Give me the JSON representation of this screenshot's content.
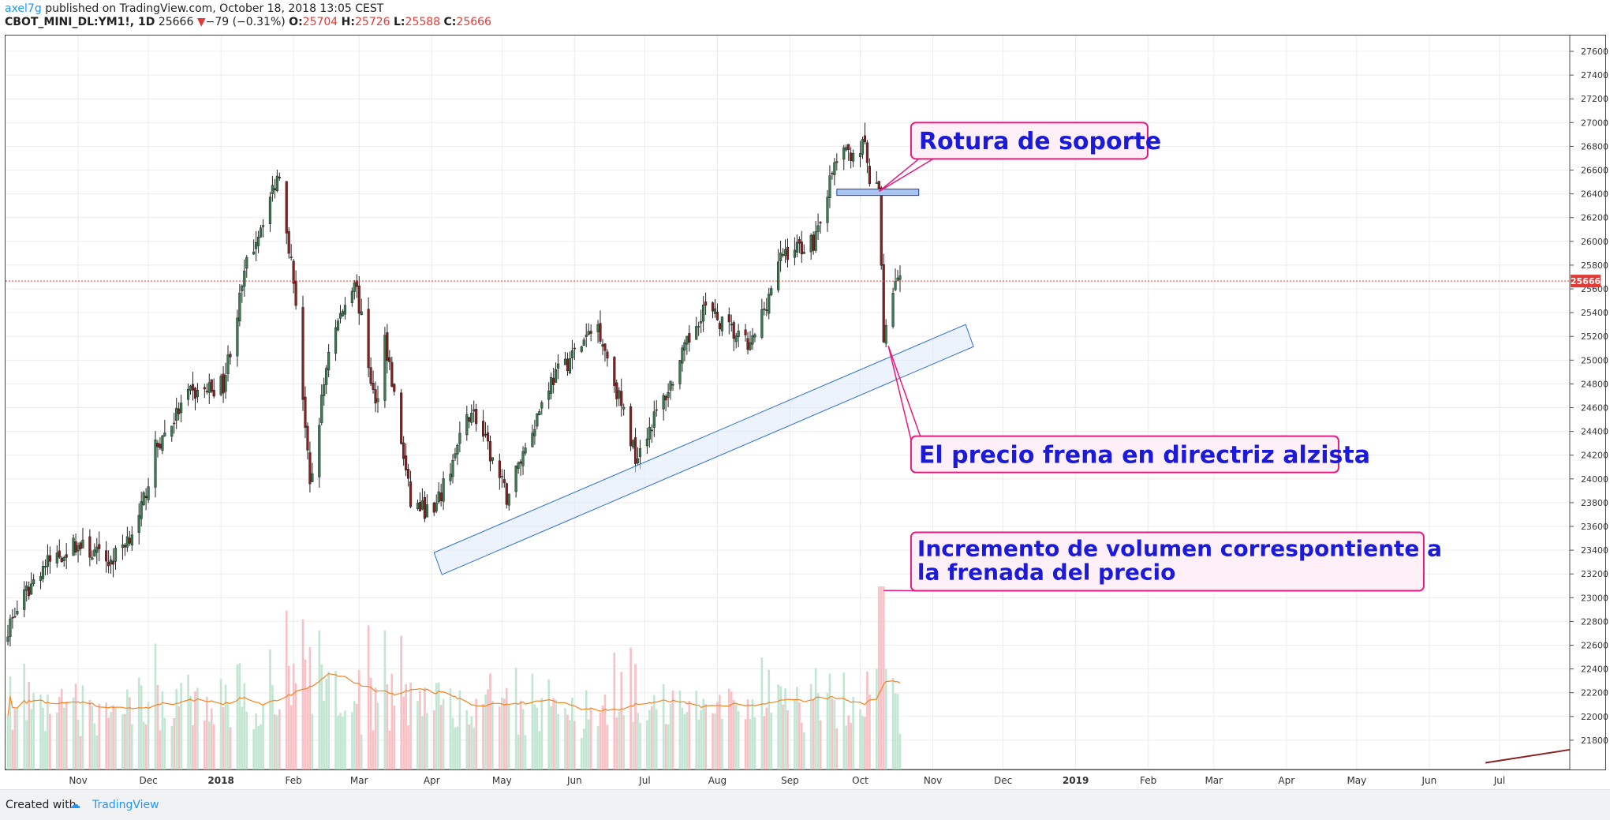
{
  "header": {
    "author": "axel7g",
    "published": "published on TradingView.com, October 18, 2018 13:05 CEST",
    "symbol": "CBOT_MINI_DL:YM1!, 1D",
    "last": "25666",
    "change_arrow": "▼",
    "change": "−79 (−0.31%)",
    "o_label": "O:",
    "o_val": "25704",
    "h_label": "H:",
    "h_val": "25726",
    "l_label": "L:",
    "l_val": "25588",
    "c_label": "C:",
    "c_val": "25666"
  },
  "footer": {
    "created": "Created with",
    "logo_icon": "tradingview-logo-icon",
    "brand": "TradingView"
  },
  "colors": {
    "up": "#387d4f",
    "down": "#8b1f1f",
    "vol_up": "#c3e6d3",
    "vol_down": "#f7c1c6",
    "ma": "#f58220",
    "channel": "#2d6fd6",
    "channel_fill": "#dce9f9",
    "annotation_border": "#e8197f",
    "annotation_text": "#1a1ad8",
    "annotation_fill": "#fff0f8",
    "last_price": "#e53935",
    "grid": "#ececec"
  },
  "chart_data": {
    "type": "candlestick",
    "symbol": "CBOT_MINI_DL:YM1!",
    "interval": "1D",
    "x_range": [
      "2017-10-01",
      "2019-07-31"
    ],
    "ylim": [
      21600,
      27700
    ],
    "y_ticks": [
      21800,
      22000,
      22200,
      22400,
      22600,
      22800,
      23000,
      23200,
      23400,
      23600,
      23800,
      24000,
      24200,
      24400,
      24600,
      24800,
      25000,
      25200,
      25400,
      25600,
      25800,
      26000,
      26200,
      26400,
      26600,
      26800,
      27000,
      27200,
      27400,
      27600
    ],
    "x_ticks": [
      {
        "label": "Nov",
        "date": "2017-11-01",
        "bold": false
      },
      {
        "label": "Dec",
        "date": "2017-12-01",
        "bold": false
      },
      {
        "label": "2018",
        "date": "2018-01-01",
        "bold": true
      },
      {
        "label": "Feb",
        "date": "2018-02-01",
        "bold": false
      },
      {
        "label": "Mar",
        "date": "2018-03-01",
        "bold": false
      },
      {
        "label": "Apr",
        "date": "2018-04-01",
        "bold": false
      },
      {
        "label": "May",
        "date": "2018-05-01",
        "bold": false
      },
      {
        "label": "Jun",
        "date": "2018-06-01",
        "bold": false
      },
      {
        "label": "Jul",
        "date": "2018-07-01",
        "bold": false
      },
      {
        "label": "Aug",
        "date": "2018-08-01",
        "bold": false
      },
      {
        "label": "Sep",
        "date": "2018-09-01",
        "bold": false
      },
      {
        "label": "Oct",
        "date": "2018-10-01",
        "bold": false
      },
      {
        "label": "Nov",
        "date": "2018-11-01",
        "bold": false
      },
      {
        "label": "Dec",
        "date": "2018-12-01",
        "bold": false
      },
      {
        "label": "2019",
        "date": "2019-01-01",
        "bold": true
      },
      {
        "label": "Feb",
        "date": "2019-02-01",
        "bold": false
      },
      {
        "label": "Mar",
        "date": "2019-03-01",
        "bold": false
      },
      {
        "label": "Apr",
        "date": "2019-04-01",
        "bold": false
      },
      {
        "label": "May",
        "date": "2019-05-01",
        "bold": false
      },
      {
        "label": "Jun",
        "date": "2019-06-01",
        "bold": false
      },
      {
        "label": "Jul",
        "date": "2019-07-01",
        "bold": false
      }
    ],
    "price_path": [
      [
        "2017-10-02",
        22750
      ],
      [
        "2017-10-16",
        23250
      ],
      [
        "2017-10-31",
        23450
      ],
      [
        "2017-11-15",
        23300
      ],
      [
        "2017-11-27",
        23650
      ],
      [
        "2017-12-04",
        24250
      ],
      [
        "2017-12-18",
        24700
      ],
      [
        "2018-01-02",
        24800
      ],
      [
        "2018-01-12",
        25800
      ],
      [
        "2018-01-26",
        26600
      ],
      [
        "2018-02-02",
        25500
      ],
      [
        "2018-02-08",
        23900
      ],
      [
        "2018-02-16",
        25100
      ],
      [
        "2018-02-27",
        25700
      ],
      [
        "2018-03-08",
        24600
      ],
      [
        "2018-03-12",
        25200
      ],
      [
        "2018-03-23",
        23800
      ],
      [
        "2018-04-02",
        23700
      ],
      [
        "2018-04-18",
        24600
      ],
      [
        "2018-05-03",
        23850
      ],
      [
        "2018-05-21",
        24800
      ],
      [
        "2018-06-11",
        25300
      ],
      [
        "2018-06-27",
        24200
      ],
      [
        "2018-07-11",
        24750
      ],
      [
        "2018-07-26",
        25450
      ],
      [
        "2018-08-15",
        25100
      ],
      [
        "2018-08-29",
        25900
      ],
      [
        "2018-09-11",
        26000
      ],
      [
        "2018-09-21",
        26700
      ],
      [
        "2018-10-03",
        26800
      ],
      [
        "2018-10-05",
        26500
      ],
      [
        "2018-10-09",
        26400
      ],
      [
        "2018-10-11",
        25200
      ],
      [
        "2018-10-16",
        25700
      ],
      [
        "2018-10-18",
        25666
      ]
    ],
    "last_price": 25666,
    "last_price_label": "25666",
    "volume_spike_date": "2018-10-10",
    "channel": {
      "start": [
        "2018-04-02",
        23380
      ],
      "end": [
        "2018-11-15",
        25300
      ],
      "height": 220
    },
    "support_box": {
      "from": "2018-09-21",
      "to": "2018-10-26",
      "low": 26370,
      "high": 26420
    },
    "extension_line": {
      "start": [
        "2019-06-25",
        21610
      ],
      "end": [
        "2019-07-31",
        21720
      ]
    },
    "annotations": [
      {
        "text": "Rotura de soporte",
        "box_anchor": [
          "2018-10-20",
          27000
        ],
        "target": [
          "2018-10-09",
          26420
        ]
      },
      {
        "text": "El precio frena en directriz alzista",
        "box_anchor": [
          "2018-10-20",
          24360
        ],
        "target": [
          "2018-10-13",
          25120
        ]
      },
      {
        "text": "Incremento de volumen correspontiente a la frenada del precio",
        "box_anchor": [
          "2018-10-20",
          23550
        ],
        "target": [
          "2018-10-11",
          23060
        ]
      }
    ]
  }
}
